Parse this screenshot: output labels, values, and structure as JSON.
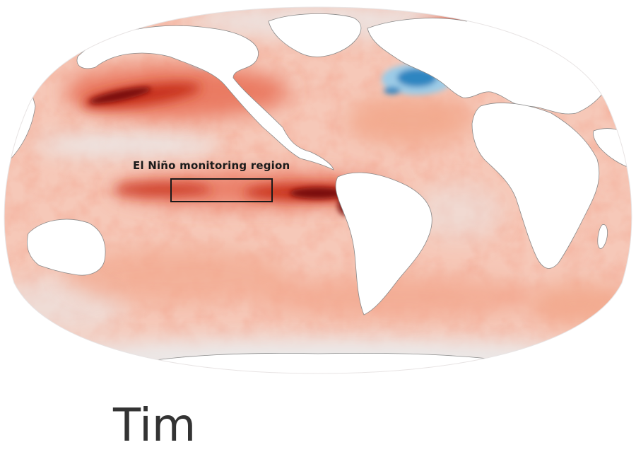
{
  "map": {
    "region_label": "El Niño monitoring region",
    "colors": {
      "ocean_base": "#f6c8b8",
      "warm_light": "#f2a88d",
      "warm_mid": "#e9725a",
      "warm_strong": "#c8321f",
      "warm_extreme": "#7a0c0c",
      "cool": "#2e86c1",
      "cool_light": "#9ccbe6",
      "neutral": "#ebe9e9",
      "land": "#ffffff",
      "coast": "#8a8a8a"
    }
  },
  "caption": {
    "text": "Tim"
  }
}
